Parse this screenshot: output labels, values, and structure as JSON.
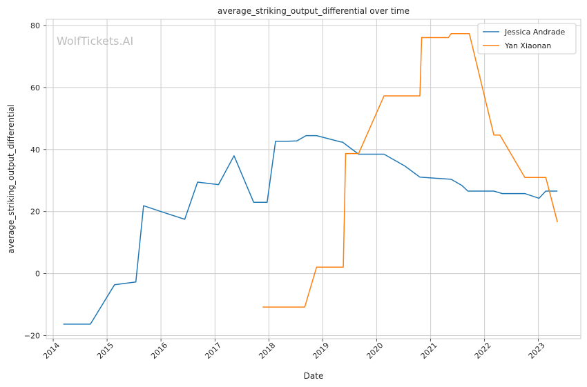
{
  "chart_data": {
    "type": "line",
    "title": "average_striking_output_differential over time",
    "xlabel": "Date",
    "ylabel": "average_striking_output_differential",
    "watermark": "WolfTickets.AI",
    "xlim": [
      "2013-11-15",
      "2023-10-15"
    ],
    "ylim": [
      -21,
      82
    ],
    "x_ticks": [
      "2014-01-01",
      "2015-01-01",
      "2016-01-01",
      "2017-01-01",
      "2018-01-01",
      "2019-01-01",
      "2020-01-01",
      "2021-01-01",
      "2022-01-01",
      "2023-01-01"
    ],
    "x_tick_labels": [
      "2014",
      "2015",
      "2016",
      "2017",
      "2018",
      "2019",
      "2020",
      "2021",
      "2022",
      "2023"
    ],
    "y_ticks": [
      -20,
      0,
      20,
      40,
      60,
      80
    ],
    "y_tick_labels": [
      "−20",
      "0",
      "20",
      "40",
      "60",
      "80"
    ],
    "grid": true,
    "legend_position": "top-right",
    "series": [
      {
        "name": "Jessica Andrade",
        "color": "#1f77b4",
        "points": [
          [
            "2014-03-10",
            -16.3
          ],
          [
            "2014-07-10",
            -16.3
          ],
          [
            "2014-09-10",
            -16.3
          ],
          [
            "2015-02-20",
            -3.6
          ],
          [
            "2015-07-15",
            -2.7
          ],
          [
            "2015-09-05",
            21.9
          ],
          [
            "2016-01-01",
            20.0
          ],
          [
            "2016-06-10",
            17.5
          ],
          [
            "2016-09-05",
            29.5
          ],
          [
            "2017-01-25",
            28.7
          ],
          [
            "2017-05-10",
            38.0
          ],
          [
            "2017-09-20",
            23.0
          ],
          [
            "2017-12-20",
            23.0
          ],
          [
            "2018-02-15",
            42.7
          ],
          [
            "2018-05-10",
            42.7
          ],
          [
            "2018-07-10",
            42.8
          ],
          [
            "2018-09-10",
            44.5
          ],
          [
            "2018-11-20",
            44.5
          ],
          [
            "2019-05-01",
            42.5
          ],
          [
            "2019-05-15",
            42.4
          ],
          [
            "2019-09-01",
            38.5
          ],
          [
            "2020-02-20",
            38.5
          ],
          [
            "2020-07-10",
            34.7
          ],
          [
            "2020-10-20",
            31.1
          ],
          [
            "2021-05-20",
            30.4
          ],
          [
            "2021-08-01",
            28.4
          ],
          [
            "2021-09-10",
            26.6
          ],
          [
            "2022-03-05",
            26.6
          ],
          [
            "2022-05-01",
            25.8
          ],
          [
            "2022-10-01",
            25.8
          ],
          [
            "2023-01-05",
            24.3
          ],
          [
            "2023-02-20",
            26.6
          ],
          [
            "2023-05-10",
            26.6
          ]
        ]
      },
      {
        "name": "Yan Xiaonan",
        "color": "#ff7f0e",
        "points": [
          [
            "2017-11-20",
            -10.8
          ],
          [
            "2018-09-01",
            -10.8
          ],
          [
            "2018-11-20",
            2.1
          ],
          [
            "2019-05-20",
            2.1
          ],
          [
            "2019-06-05",
            38.7
          ],
          [
            "2019-09-01",
            38.7
          ],
          [
            "2020-02-20",
            57.3
          ],
          [
            "2020-10-20",
            57.3
          ],
          [
            "2020-11-01",
            76.1
          ],
          [
            "2021-05-01",
            76.1
          ],
          [
            "2021-05-20",
            77.4
          ],
          [
            "2021-09-20",
            77.4
          ],
          [
            "2022-03-05",
            44.7
          ],
          [
            "2022-04-15",
            44.7
          ],
          [
            "2022-10-01",
            31.0
          ],
          [
            "2023-02-20",
            31.0
          ],
          [
            "2023-05-10",
            16.6
          ]
        ]
      }
    ]
  }
}
